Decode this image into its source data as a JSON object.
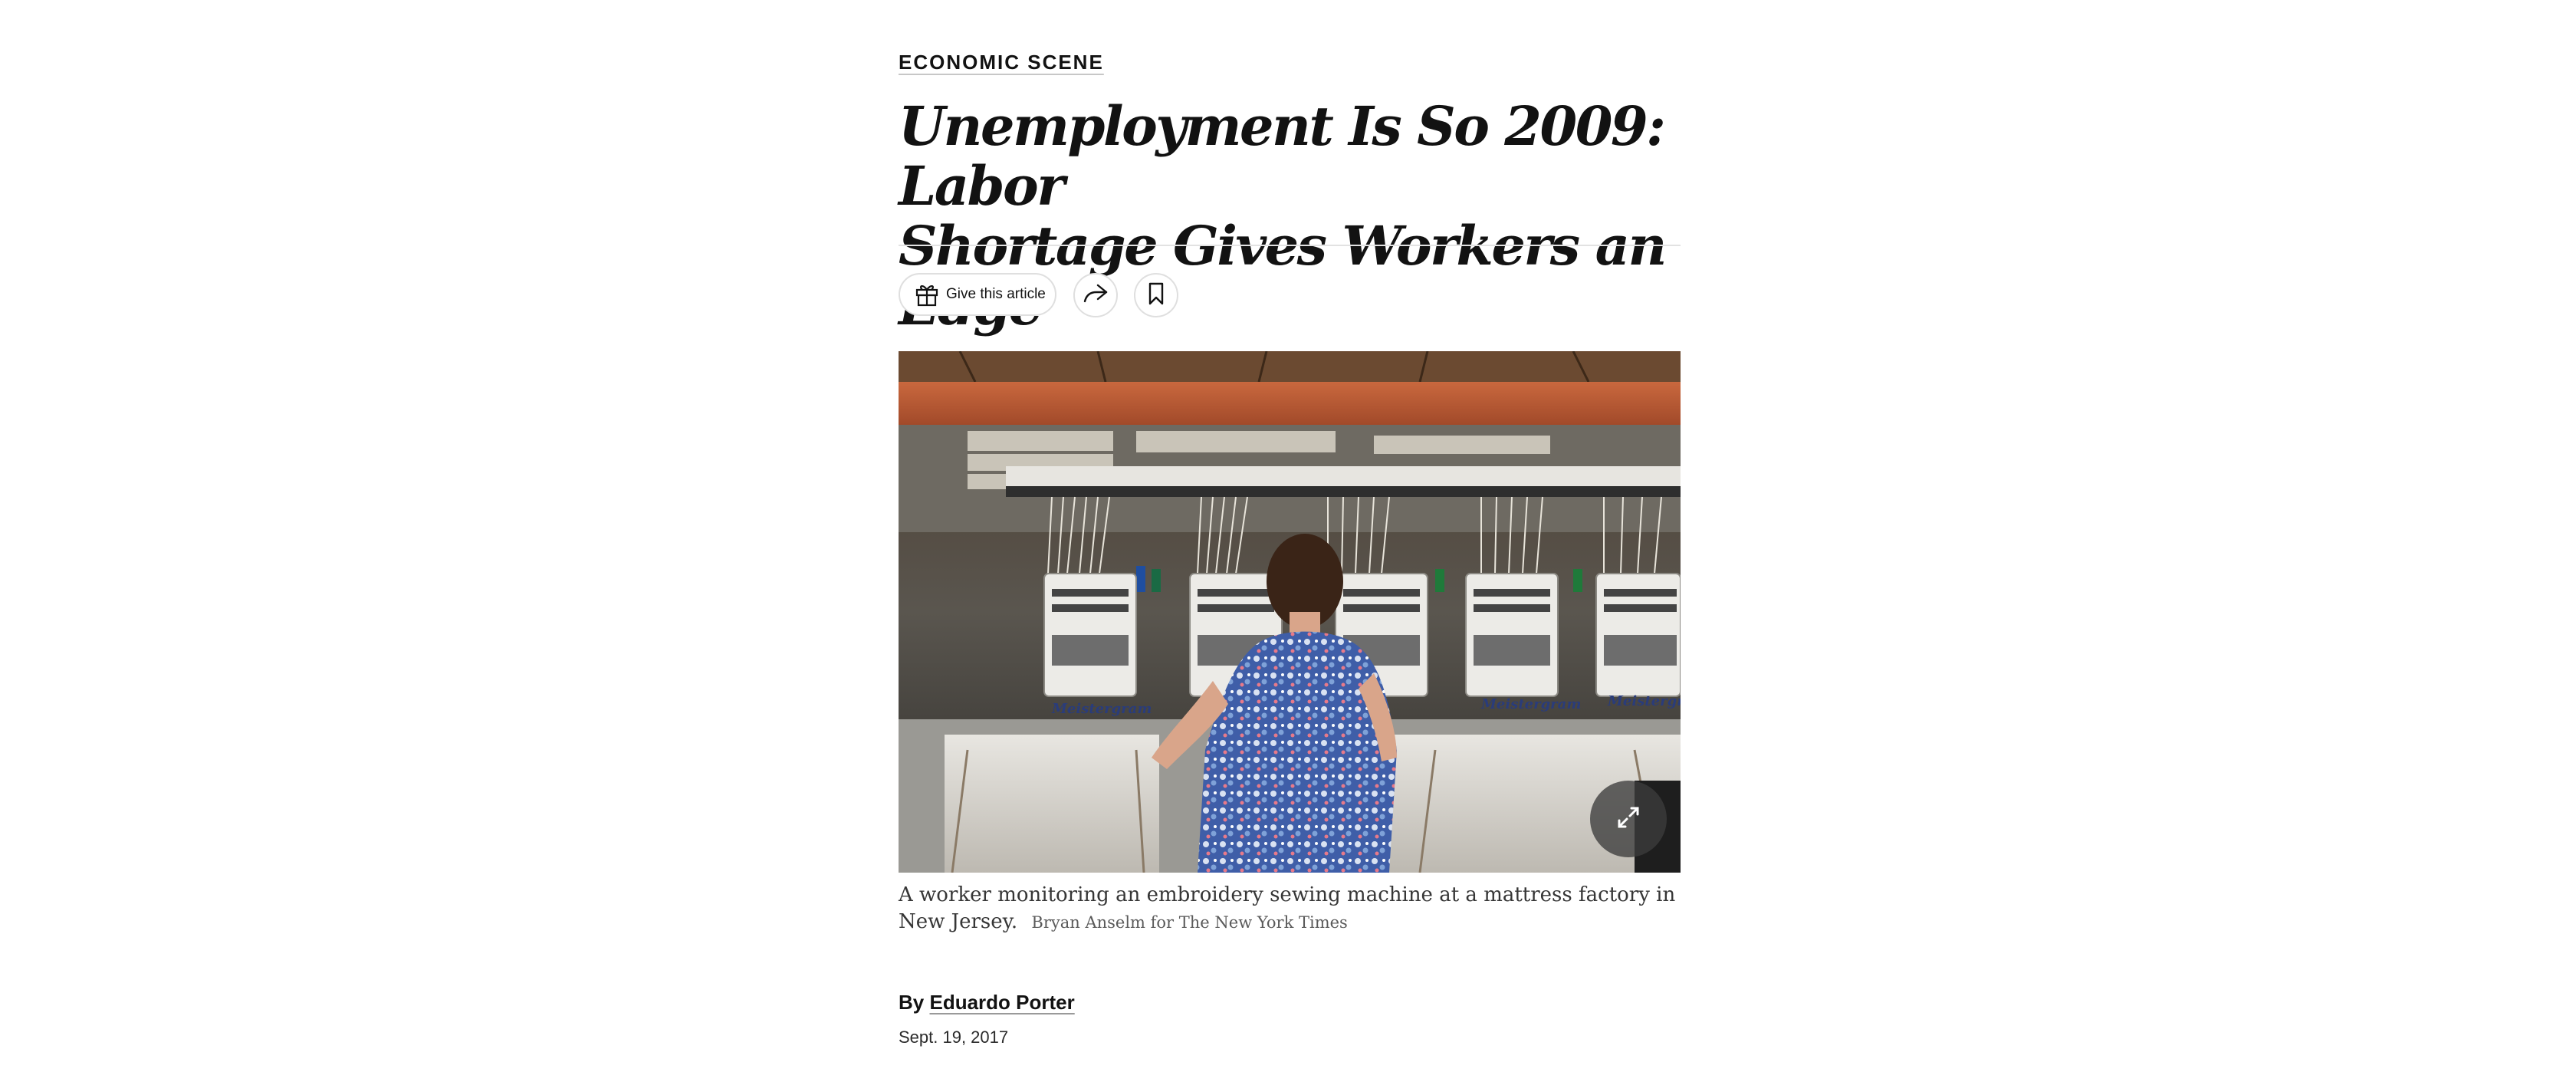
{
  "article": {
    "kicker": "ECONOMIC SCENE",
    "headline_line1": "Unemployment Is So 2009: Labor",
    "headline_line2": "Shortage Gives Workers an Edge",
    "caption_text": "A worker monitoring an embroidery sewing machine at a mattress factory in New Jersey.",
    "photo_credit": "Bryan Anselm for The New York Times",
    "byline_prefix": "By",
    "author": "Eduardo Porter",
    "date": "Sept. 19, 2017"
  },
  "toolbar": {
    "gift_label": "Give this article",
    "gift_icon": "gift-icon",
    "share_icon": "share-icon",
    "save_icon": "bookmark-icon"
  },
  "photo": {
    "machine_brand": "Meistergram",
    "expand_icon": "expand-icon"
  },
  "colors": {
    "text": "#121212",
    "divider": "#e2e2e2",
    "caption": "#363636"
  }
}
